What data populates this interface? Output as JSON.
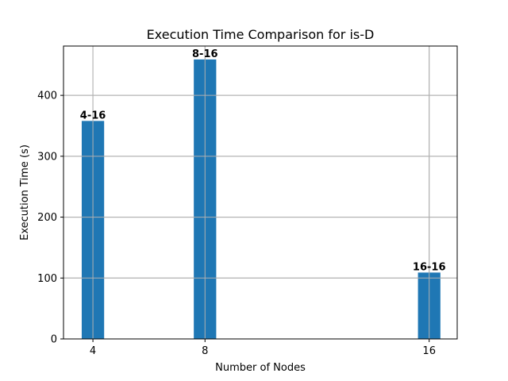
{
  "chart_data": {
    "type": "bar",
    "title": "Execution Time Comparison for is-D",
    "xlabel": "Number of Nodes",
    "ylabel": "Execution Time (s)",
    "x": [
      4,
      8,
      16
    ],
    "values": [
      358,
      459,
      109
    ],
    "bar_labels": [
      "4-16",
      "8-16",
      "16-16"
    ],
    "x_ticks": [
      "4",
      "8",
      "16"
    ],
    "y_ticks": [
      0,
      100,
      200,
      300,
      400
    ],
    "xlim": [
      2.95,
      17
    ],
    "ylim": [
      0,
      481
    ],
    "bar_width": 0.8,
    "grid": true,
    "bar_color": "#1f77b4",
    "grid_color": "#b0b0b0"
  }
}
